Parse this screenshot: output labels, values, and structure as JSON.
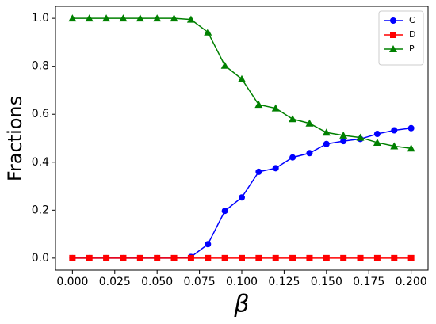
{
  "chart_data": {
    "type": "line",
    "xlabel": "β",
    "ylabel": "Fractions",
    "x": [
      0,
      0.01,
      0.02,
      0.03,
      0.04,
      0.05,
      0.06,
      0.07,
      0.08,
      0.09,
      0.1,
      0.11,
      0.12,
      0.13,
      0.14,
      0.15,
      0.16,
      0.17,
      0.18,
      0.19,
      0.2
    ],
    "series": [
      {
        "name": "C",
        "color": "#0000ff",
        "marker": "circle",
        "values": [
          0,
          0,
          0,
          0,
          0,
          0,
          0,
          0.005,
          0.058,
          0.197,
          0.253,
          0.36,
          0.375,
          0.42,
          0.438,
          0.476,
          0.488,
          0.497,
          0.518,
          0.533,
          0.542
        ]
      },
      {
        "name": "D",
        "color": "#ff0000",
        "marker": "square",
        "values": [
          0,
          0,
          0,
          0,
          0,
          0,
          0,
          0,
          0,
          0,
          0,
          0,
          0,
          0,
          0,
          0,
          0,
          0,
          0,
          0,
          0
        ]
      },
      {
        "name": "P",
        "color": "#008000",
        "marker": "triangle",
        "values": [
          1,
          1,
          1,
          1,
          1,
          1,
          1,
          0.995,
          0.942,
          0.803,
          0.747,
          0.64,
          0.625,
          0.58,
          0.562,
          0.524,
          0.512,
          0.503,
          0.482,
          0.467,
          0.458
        ]
      }
    ],
    "xlim": [
      -0.01,
      0.21
    ],
    "ylim": [
      -0.05,
      1.05
    ],
    "xticks": [
      {
        "value": 0,
        "label": "0.000"
      },
      {
        "value": 0.025,
        "label": "0.025"
      },
      {
        "value": 0.05,
        "label": "0.050"
      },
      {
        "value": 0.075,
        "label": "0.075"
      },
      {
        "value": 0.1,
        "label": "0.100"
      },
      {
        "value": 0.125,
        "label": "0.125"
      },
      {
        "value": 0.15,
        "label": "0.150"
      },
      {
        "value": 0.175,
        "label": "0.175"
      },
      {
        "value": 0.2,
        "label": "0.200"
      }
    ],
    "yticks": [
      {
        "value": 0,
        "label": "0.0"
      },
      {
        "value": 0.2,
        "label": "0.2"
      },
      {
        "value": 0.4,
        "label": "0.4"
      },
      {
        "value": 0.6,
        "label": "0.6"
      },
      {
        "value": 0.8,
        "label": "0.8"
      },
      {
        "value": 1,
        "label": "1.0"
      }
    ],
    "legend": "upper right"
  }
}
